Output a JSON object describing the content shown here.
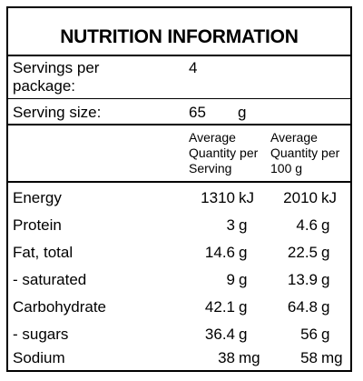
{
  "title": "NUTRITION INFORMATION",
  "servings": {
    "label_line1": "Servings per",
    "label_line2": "package:",
    "value": "4"
  },
  "serving_size": {
    "label": "Serving size:",
    "value": "65",
    "unit": "g"
  },
  "columns": {
    "per_serving": [
      "Average",
      "Quantity per",
      "Serving"
    ],
    "per_100g": [
      "Average",
      "Quantity per",
      "100 g"
    ]
  },
  "nutrients": [
    {
      "name": "Energy",
      "serving": "1310",
      "serving_unit": "kJ",
      "per100": "2010",
      "per100_unit": "kJ"
    },
    {
      "name": "Protein",
      "serving": "3",
      "serving_unit": "g",
      "per100": "4.6",
      "per100_unit": "g"
    },
    {
      "name": "Fat, total",
      "serving": "14.6",
      "serving_unit": "g",
      "per100": "22.5",
      "per100_unit": "g"
    },
    {
      "name": "- saturated",
      "serving": "9",
      "serving_unit": "g",
      "per100": "13.9",
      "per100_unit": "g"
    },
    {
      "name": "Carbohydrate",
      "serving": "42.1",
      "serving_unit": "g",
      "per100": "64.8",
      "per100_unit": "g"
    },
    {
      "name": "- sugars",
      "serving": "36.4",
      "serving_unit": "g",
      "per100": "56",
      "per100_unit": "g"
    },
    {
      "name": "Sodium",
      "serving": "38",
      "serving_unit": "mg",
      "per100": "58",
      "per100_unit": "mg"
    }
  ]
}
